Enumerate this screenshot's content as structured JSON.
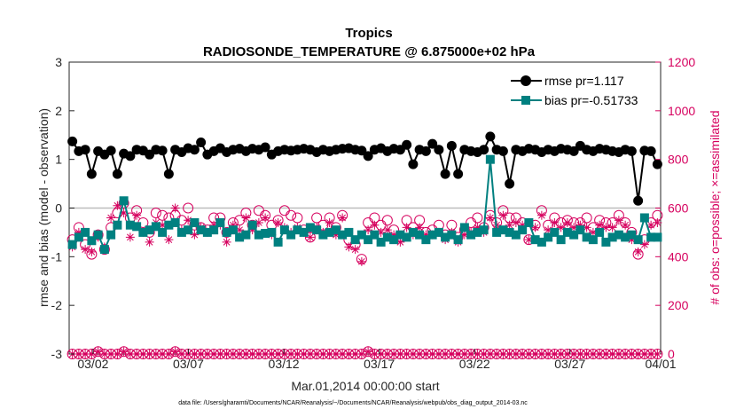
{
  "chart_data": {
    "type": "line",
    "title": "Tropics",
    "subtitle": "RADIOSONDE_TEMPERATURE @ 6.875000e+02 hPa",
    "xlabel": "Mar.01,2014 00:00:00 start",
    "ylabel": "rmse and bias (model - observation)",
    "ylabel_right": "# of obs: o=possible; ×=assimilated",
    "footer": "data file: /Users/gharamti/Documents/NCAR/Reanalysis/~/Documents/NCAR/Reanalysis/webpub/obs_diag_output_2014-03.nc",
    "xlim": [
      0,
      31
    ],
    "ylim": [
      -3,
      3
    ],
    "ylim_right": [
      0,
      1200
    ],
    "x_ticks": [
      {
        "x": 1.25,
        "label": "03/02"
      },
      {
        "x": 6.25,
        "label": "03/07"
      },
      {
        "x": 11.25,
        "label": "03/12"
      },
      {
        "x": 16.25,
        "label": "03/17"
      },
      {
        "x": 21.25,
        "label": "03/22"
      },
      {
        "x": 26.25,
        "label": "03/27"
      },
      {
        "x": 31,
        "label": "04/01"
      }
    ],
    "y_ticks": [
      "-3",
      "-2",
      "-1",
      "0",
      "1",
      "2",
      "3"
    ],
    "y_ticks_right": [
      "0",
      "200",
      "400",
      "600",
      "800",
      "1000",
      "1200"
    ],
    "legend": [
      {
        "label": "rmse pr=1.117",
        "color": "#000000",
        "marker": "circle"
      },
      {
        "label": "bias pr=-0.51733",
        "color": "#008080",
        "marker": "square"
      }
    ],
    "series": [
      {
        "name": "rmse",
        "color": "#000000",
        "values": [
          1.37,
          1.17,
          1.2,
          0.7,
          1.17,
          1.1,
          1.18,
          0.7,
          1.12,
          1.07,
          1.2,
          1.18,
          1.1,
          1.2,
          1.18,
          0.7,
          1.2,
          1.15,
          1.23,
          1.2,
          1.35,
          1.1,
          1.17,
          1.23,
          1.15,
          1.2,
          1.22,
          1.17,
          1.22,
          1.2,
          1.25,
          1.1,
          1.17,
          1.2,
          1.18,
          1.2,
          1.22,
          1.2,
          1.15,
          1.2,
          1.17,
          1.2,
          1.22,
          1.23,
          1.2,
          1.18,
          1.07,
          1.2,
          1.23,
          1.17,
          1.22,
          1.2,
          1.3,
          0.9,
          1.2,
          1.17,
          1.32,
          1.2,
          0.7,
          1.28,
          0.7,
          1.2,
          1.17,
          1.15,
          1.2,
          1.47,
          1.2,
          1.17,
          0.5,
          1.2,
          1.17,
          1.22,
          1.2,
          1.15,
          1.2,
          1.17,
          1.22,
          1.2,
          1.17,
          1.28,
          1.2,
          1.17,
          1.22,
          1.2,
          1.17,
          1.15,
          1.2,
          1.17,
          0.15,
          1.18,
          1.17,
          0.9
        ]
      },
      {
        "name": "bias",
        "color": "#008080",
        "values": [
          -0.75,
          -0.6,
          -0.5,
          -0.67,
          -0.55,
          -0.85,
          -0.55,
          -0.35,
          0.15,
          -0.35,
          -0.38,
          -0.5,
          -0.45,
          -0.38,
          -0.5,
          -0.35,
          -0.3,
          -0.5,
          -0.45,
          -0.3,
          -0.45,
          -0.5,
          -0.45,
          -0.3,
          -0.5,
          -0.45,
          -0.6,
          -0.55,
          -0.35,
          -0.55,
          -0.52,
          -0.5,
          -0.7,
          -0.45,
          -0.55,
          -0.45,
          -0.5,
          -0.4,
          -0.45,
          -0.55,
          -0.5,
          -0.45,
          -0.55,
          -0.5,
          -0.65,
          -0.55,
          -0.65,
          -0.55,
          -0.7,
          -0.6,
          -0.65,
          -0.55,
          -0.6,
          -0.5,
          -0.55,
          -0.65,
          -0.55,
          -0.5,
          -0.6,
          -0.55,
          -0.65,
          -0.4,
          -0.55,
          -0.5,
          -0.45,
          1.0,
          -0.5,
          -0.45,
          -0.5,
          -0.55,
          -0.45,
          -0.3,
          -0.65,
          -0.7,
          -0.6,
          -0.5,
          -0.65,
          -0.5,
          -0.55,
          -0.45,
          -0.6,
          -0.65,
          -0.5,
          -0.7,
          -0.6,
          -0.55,
          -0.6,
          -0.55,
          -0.65,
          -0.2,
          -0.6,
          -0.6
        ]
      },
      {
        "name": "possible",
        "color": "#d6005e",
        "axis": "right",
        "values": [
          470,
          520,
          450,
          410,
          490,
          430,
          520,
          580,
          620,
          560,
          590,
          540,
          500,
          580,
          570,
          560,
          570,
          550,
          600,
          530,
          520,
          510,
          560,
          560,
          500,
          540,
          550,
          580,
          530,
          590,
          570,
          530,
          550,
          590,
          570,
          560,
          510,
          480,
          560,
          530,
          560,
          520,
          570,
          470,
          450,
          390,
          540,
          560,
          530,
          550,
          510,
          480,
          550,
          520,
          550,
          500,
          510,
          530,
          490,
          530,
          480,
          510,
          540,
          560,
          520,
          570,
          540,
          590,
          560,
          560,
          540,
          470,
          530,
          590,
          530,
          560,
          540,
          550,
          540,
          540,
          560,
          520,
          550,
          540,
          540,
          570,
          540,
          500,
          410,
          470,
          540,
          570
        ]
      },
      {
        "name": "assimilated",
        "color": "#d6005e",
        "axis": "right",
        "values": [
          440,
          500,
          430,
          420,
          480,
          440,
          560,
          610,
          580,
          480,
          570,
          500,
          460,
          540,
          530,
          470,
          600,
          510,
          550,
          490,
          520,
          500,
          530,
          530,
          460,
          530,
          510,
          560,
          510,
          540,
          560,
          490,
          540,
          520,
          500,
          520,
          500,
          480,
          520,
          500,
          540,
          490,
          560,
          440,
          430,
          380,
          510,
          530,
          500,
          510,
          490,
          460,
          520,
          490,
          520,
          490,
          490,
          500,
          470,
          500,
          460,
          490,
          500,
          520,
          500,
          560,
          530,
          570,
          530,
          540,
          530,
          470,
          520,
          570,
          510,
          540,
          520,
          540,
          520,
          530,
          520,
          500,
          530,
          520,
          520,
          550,
          530,
          470,
          420,
          450,
          530,
          540
        ]
      },
      {
        "name": "possible_baseline",
        "color": "#d6005e",
        "axis": "right",
        "values": [
          0,
          0,
          0,
          0,
          10,
          0,
          0,
          0,
          10,
          0,
          0,
          0,
          0,
          0,
          0,
          0,
          10,
          0,
          0,
          0,
          0,
          0,
          0,
          0,
          0,
          0,
          0,
          0,
          0,
          0,
          0,
          0,
          0,
          0,
          0,
          0,
          0,
          0,
          0,
          0,
          0,
          0,
          0,
          0,
          0,
          0,
          10,
          0,
          0,
          0,
          0,
          0,
          0,
          0,
          0,
          0,
          0,
          0,
          0,
          0,
          0,
          0,
          0,
          0,
          0,
          0,
          0,
          0,
          0,
          0,
          0,
          0,
          0,
          0,
          0,
          0,
          0,
          0,
          0,
          0,
          0,
          0,
          0,
          0,
          0,
          0,
          0,
          0,
          0,
          0,
          0,
          0
        ]
      }
    ]
  }
}
